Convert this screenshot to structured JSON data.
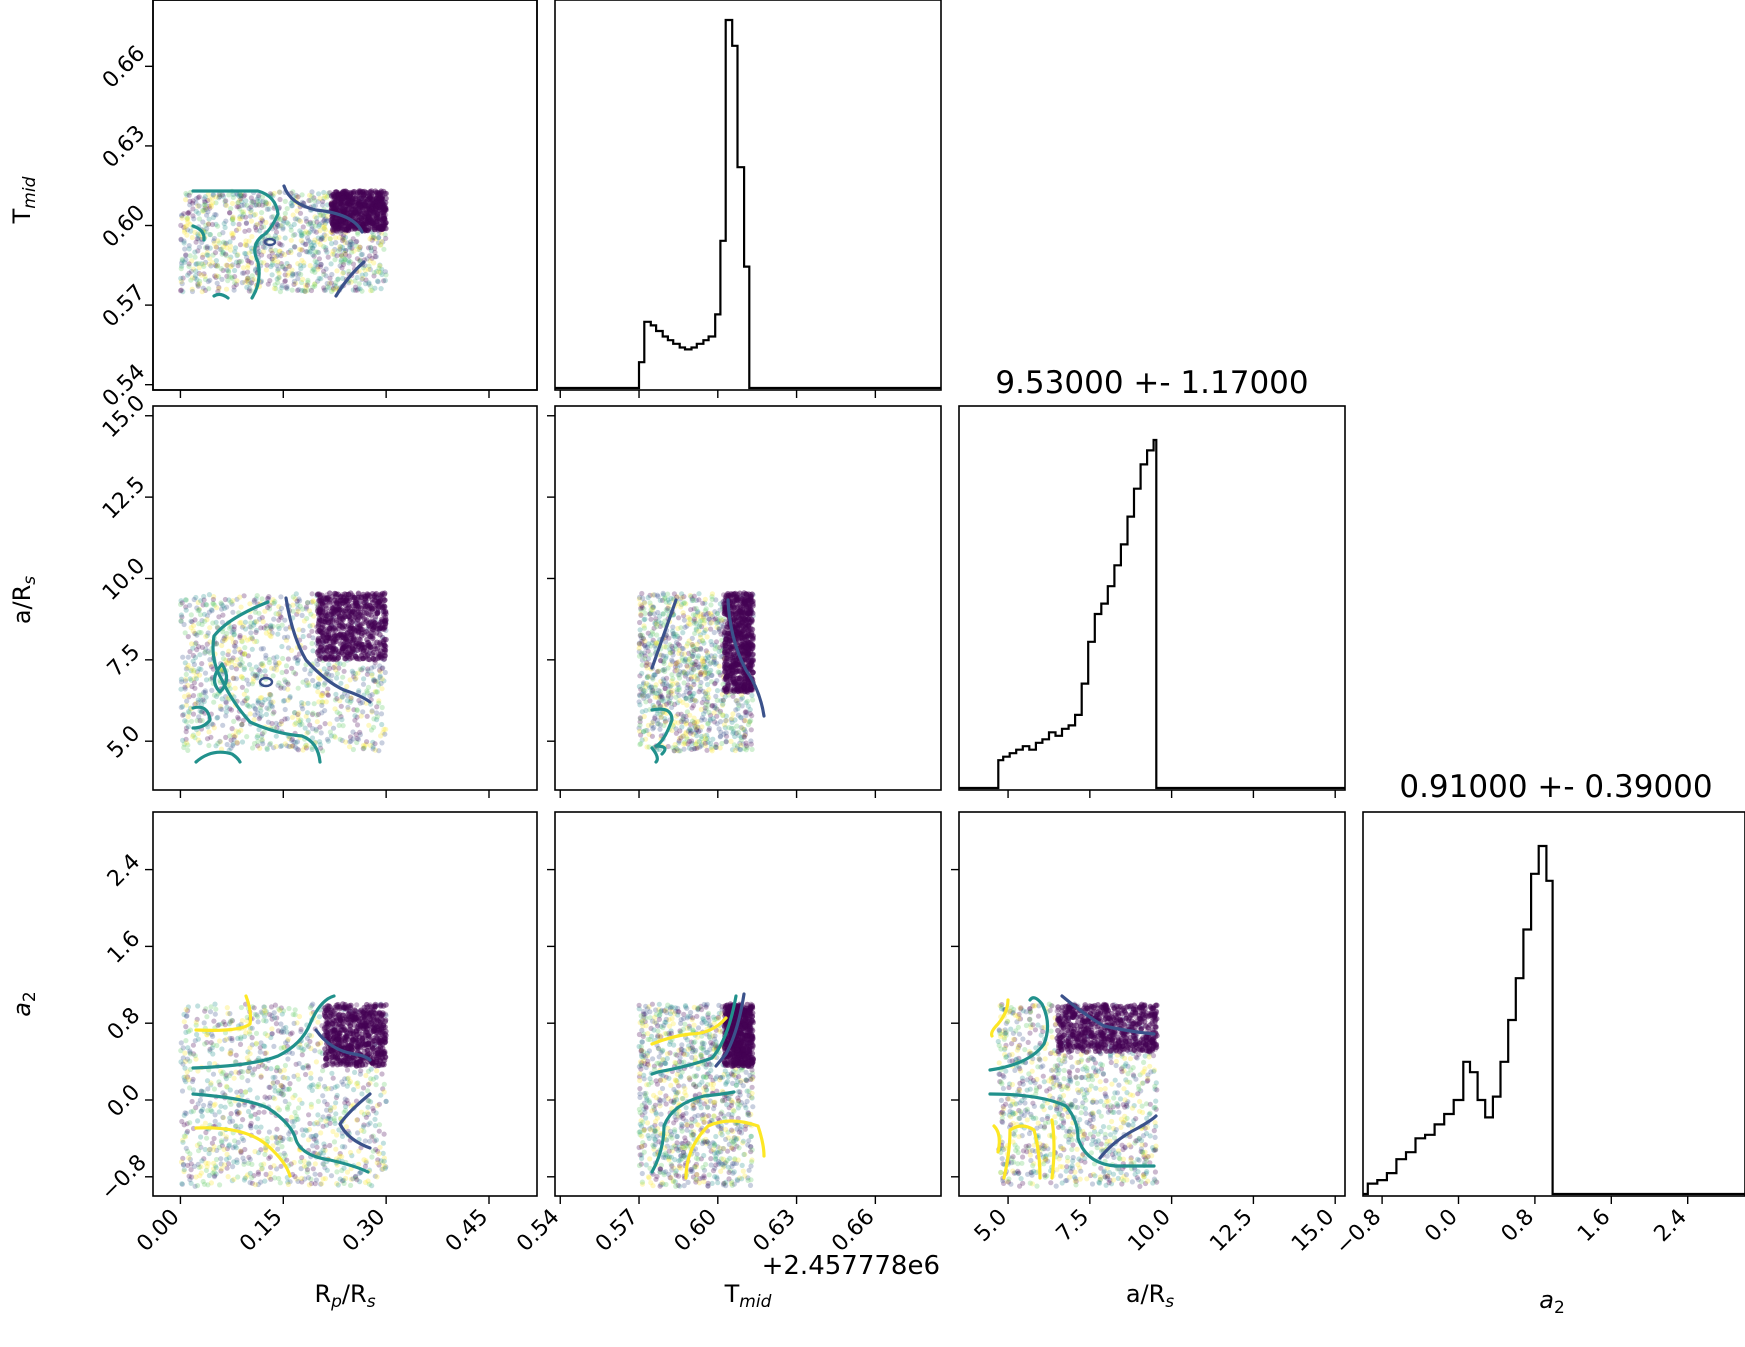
{
  "chart_data": {
    "type": "corner",
    "parameters": [
      {
        "key": "rp",
        "label_main": "R",
        "label_sub": "p",
        "label_tail": "/R",
        "label_tail_sub": "s"
      },
      {
        "key": "tmid",
        "label_main": "T",
        "label_sub": "mid",
        "label_tail": "",
        "label_tail_sub": ""
      },
      {
        "key": "ars",
        "label_main": "a/R",
        "label_sub": "s",
        "label_tail": "",
        "label_tail_sub": ""
      },
      {
        "key": "a2",
        "label_main": "a",
        "label_sub": "2",
        "label_tail": "",
        "label_tail_sub": "",
        "italic": true
      }
    ],
    "axes": {
      "rp": {
        "range": [
          -0.04,
          0.52
        ],
        "ticks": [
          0.0,
          0.15,
          0.3,
          0.45
        ],
        "tick_labels": [
          "0.00",
          "0.15",
          "0.30",
          "0.45"
        ]
      },
      "tmid": {
        "range": [
          0.538,
          0.685
        ],
        "ticks": [
          0.54,
          0.57,
          0.6,
          0.63,
          0.66
        ],
        "tick_labels": [
          "0.54",
          "0.57",
          "0.60",
          "0.63",
          "0.66"
        ],
        "offset_text": "+2.457778e6"
      },
      "ars": {
        "range": [
          3.5,
          15.3
        ],
        "ticks": [
          5.0,
          7.5,
          10.0,
          12.5,
          15.0
        ],
        "tick_labels": [
          "5.0",
          "7.5",
          "10.0",
          "12.5",
          "15.0"
        ]
      },
      "a2": {
        "range": [
          -1.0,
          3.0
        ],
        "ticks": [
          -0.8,
          0.0,
          0.8,
          1.6,
          2.4
        ],
        "tick_labels": [
          "−0.8",
          "0.0",
          "0.8",
          "1.6",
          "2.4"
        ]
      }
    },
    "histograms": [
      {
        "param": "tmid",
        "title": "",
        "edges": [
          0.538,
          0.57,
          0.572,
          0.5745,
          0.5765,
          0.579,
          0.581,
          0.583,
          0.5855,
          0.5875,
          0.59,
          0.592,
          0.5945,
          0.5965,
          0.599,
          0.601,
          0.603,
          0.6055,
          0.6075,
          0.61,
          0.612,
          0.6135,
          0.685
        ],
        "counts": [
          0,
          0.07,
          0.18,
          0.17,
          0.155,
          0.14,
          0.13,
          0.12,
          0.11,
          0.105,
          0.11,
          0.12,
          0.13,
          0.14,
          0.2,
          0.4,
          1.0,
          0.93,
          0.6,
          0.33,
          0,
          0
        ]
      },
      {
        "param": "ars",
        "title": "9.53000 +- 1.17000",
        "edges": [
          3.5,
          4.7,
          4.85,
          5.05,
          5.25,
          5.45,
          5.65,
          5.85,
          6.05,
          6.25,
          6.45,
          6.65,
          6.85,
          7.05,
          7.25,
          7.45,
          7.65,
          7.85,
          8.05,
          8.25,
          8.45,
          8.65,
          8.85,
          9.05,
          9.25,
          9.45,
          9.53,
          15.3
        ],
        "counts": [
          0,
          0.08,
          0.09,
          0.1,
          0.11,
          0.12,
          0.11,
          0.13,
          0.14,
          0.16,
          0.15,
          0.17,
          0.18,
          0.21,
          0.3,
          0.42,
          0.5,
          0.53,
          0.58,
          0.64,
          0.7,
          0.78,
          0.86,
          0.93,
          0.97,
          1.0,
          0
        ]
      },
      {
        "param": "a2",
        "title": "0.91000 +- 0.39000",
        "edges": [
          -1.0,
          -0.95,
          -0.85,
          -0.75,
          -0.65,
          -0.55,
          -0.45,
          -0.35,
          -0.25,
          -0.15,
          -0.05,
          0.05,
          0.12,
          0.2,
          0.28,
          0.36,
          0.44,
          0.52,
          0.6,
          0.68,
          0.76,
          0.84,
          0.92,
          0.985,
          3.0
        ],
        "counts": [
          0,
          0.03,
          0.04,
          0.06,
          0.1,
          0.12,
          0.16,
          0.17,
          0.2,
          0.23,
          0.27,
          0.38,
          0.35,
          0.27,
          0.22,
          0.28,
          0.38,
          0.5,
          0.62,
          0.76,
          0.92,
          1.0,
          0.9,
          0
        ]
      }
    ],
    "scatter_panels": [
      {
        "x": "rp",
        "y": "tmid",
        "x_extent": [
          0.0,
          0.3
        ],
        "y_extent": [
          0.575,
          0.613
        ],
        "dense_corner": [
          0.22,
          0.3,
          0.598,
          0.613
        ]
      },
      {
        "x": "rp",
        "y": "ars",
        "x_extent": [
          0.0,
          0.3
        ],
        "y_extent": [
          4.7,
          9.55
        ],
        "dense_corner": [
          0.2,
          0.3,
          7.5,
          9.55
        ]
      },
      {
        "x": "tmid",
        "y": "ars",
        "x_extent": [
          0.57,
          0.6135
        ],
        "y_extent": [
          4.7,
          9.55
        ],
        "dense_corner": [
          0.6025,
          0.6135,
          6.5,
          9.55
        ]
      },
      {
        "x": "rp",
        "y": "a2",
        "x_extent": [
          0.0,
          0.3
        ],
        "y_extent": [
          -0.9,
          1.0
        ],
        "dense_corner": [
          0.21,
          0.3,
          0.35,
          1.0
        ]
      },
      {
        "x": "tmid",
        "y": "a2",
        "x_extent": [
          0.57,
          0.6135
        ],
        "y_extent": [
          -0.9,
          1.0
        ],
        "dense_corner": [
          0.6025,
          0.6135,
          0.35,
          1.0
        ]
      },
      {
        "x": "ars",
        "y": "a2",
        "x_extent": [
          4.7,
          9.55
        ],
        "y_extent": [
          -0.9,
          1.0
        ],
        "dense_corner": [
          6.5,
          9.55,
          0.5,
          1.0
        ]
      }
    ],
    "colormap": [
      "#440154",
      "#3b528b",
      "#21918c",
      "#5ec962",
      "#fde725"
    ]
  }
}
